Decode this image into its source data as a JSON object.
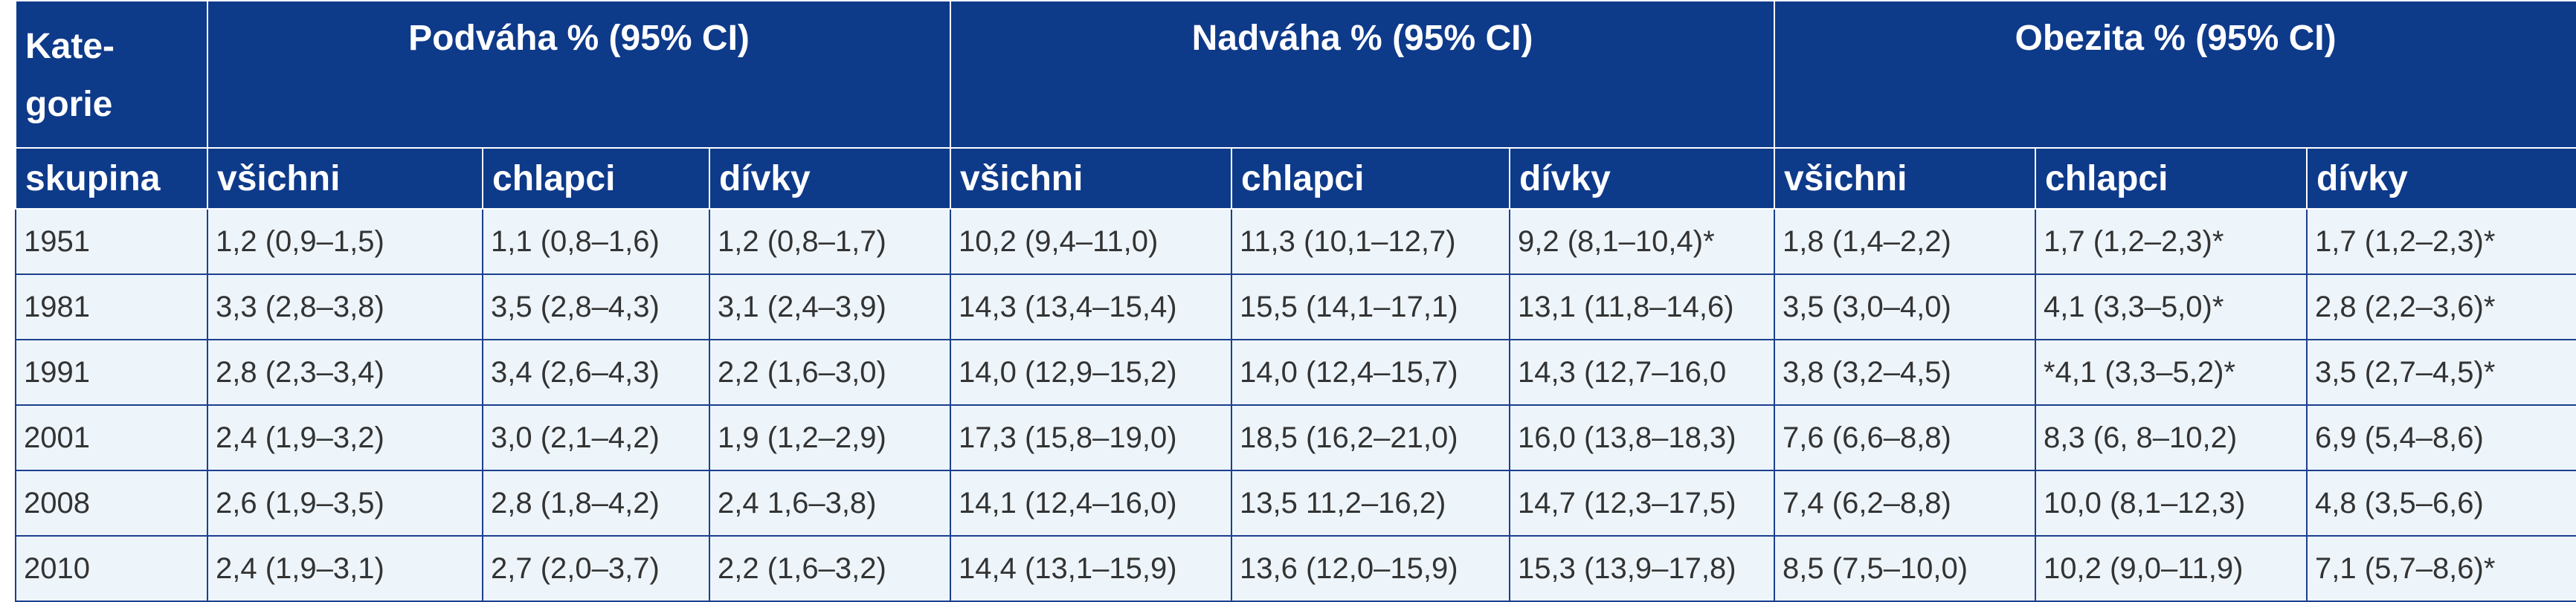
{
  "table": {
    "header": {
      "category_line1": "Kate-",
      "category_line2": "gorie",
      "category_sub": "skupina",
      "groups": [
        "Podváha % (95% CI)",
        "Nadváha % (95% CI)",
        "Obezita % (95% CI)"
      ],
      "subheaders": [
        "všichni",
        "chlapci",
        "dívky",
        "všichni",
        "chlapci",
        "dívky",
        "všichni",
        "chlapci",
        "dívky"
      ]
    },
    "rows": [
      {
        "year": "1951",
        "cells": [
          "1,2 (0,9–1,5)",
          "1,1 (0,8–1,6)",
          "1,2 (0,8–1,7)",
          "10,2 (9,4–11,0)",
          "11,3 (10,1–12,7)",
          "9,2 (8,1–10,4)*",
          "1,8 (1,4–2,2)",
          "1,7  (1,2–2,3)*",
          "1,7  (1,2–2,3)*"
        ]
      },
      {
        "year": "1981",
        "cells": [
          "3,3 (2,8–3,8)",
          "3,5 (2,8–4,3)",
          "3,1 (2,4–3,9)",
          "14,3 (13,4–15,4)",
          "15,5 (14,1–17,1)",
          "13,1 (11,8–14,6)",
          "3,5 (3,0–4,0)",
          "4,1 (3,3–5,0)*",
          "2,8 (2,2–3,6)*"
        ]
      },
      {
        "year": "1991",
        "cells": [
          "2,8 (2,3–3,4)",
          "3,4 (2,6–4,3)",
          "2,2 (1,6–3,0)",
          "14,0 (12,9–15,2)",
          "14,0 (12,4–15,7)",
          "14,3 (12,7–16,0",
          "3,8 (3,2–4,5)",
          "*4,1 (3,3–5,2)*",
          "3,5 (2,7–4,5)*"
        ]
      },
      {
        "year": "2001",
        "cells": [
          "2,4 (1,9–3,2)",
          "3,0 (2,1–4,2)",
          "1,9 (1,2–2,9)",
          "17,3 (15,8–19,0)",
          "18,5 (16,2–21,0)",
          "16,0 (13,8–18,3)",
          "7,6 (6,6–8,8)",
          "8,3 (6, 8–10,2)",
          "6,9 (5,4–8,6)"
        ]
      },
      {
        "year": "2008",
        "cells": [
          "2,6 (1,9–3,5)",
          "2,8 (1,8–4,2)",
          "2,4 1,6–3,8)",
          "14,1 (12,4–16,0)",
          "13,5 11,2–16,2)",
          "14,7 (12,3–17,5)",
          "7,4 (6,2–8,8)",
          "10,0 (8,1–12,3)",
          "4,8 (3,5–6,6)"
        ]
      },
      {
        "year": "2010",
        "cells": [
          "2,4 (1,9–3,1)",
          "2,7 (2,0–3,7)",
          "2,2 (1,6–3,2)",
          "14,4 (13,1–15,9)",
          "13,6 (12,0–15,9)",
          "15,3 (13,9–17,8)",
          "8,5 (7,5–10,0)",
          "10,2 (9,0–11,9)",
          "7,1 (5,7–8,6)*"
        ]
      }
    ]
  },
  "colors": {
    "header_bg": "#0e3a8a",
    "row_bg": "#edf5fb",
    "border": "#1c3f8f",
    "text": "#333333"
  }
}
